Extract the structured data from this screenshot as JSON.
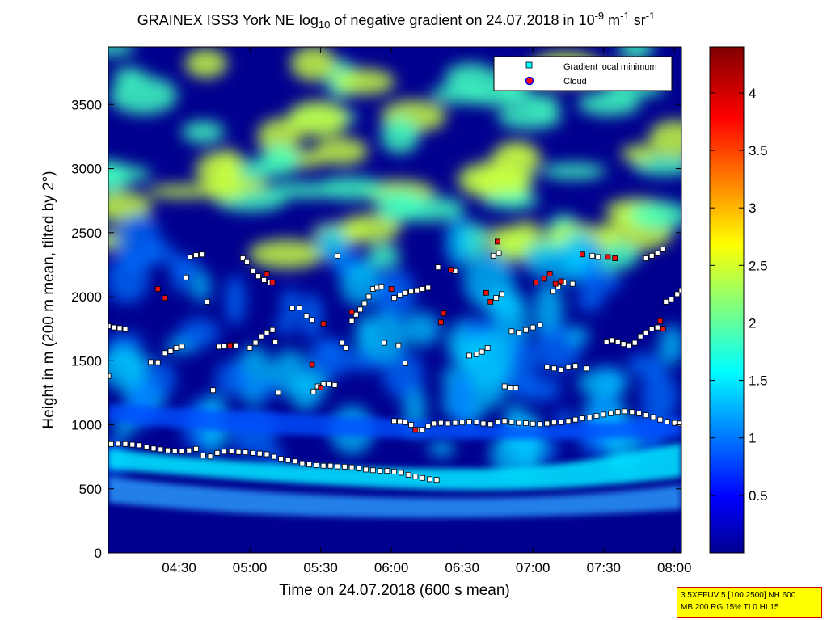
{
  "chart_data": {
    "type": "heatmap",
    "title": {
      "prefix": "GRAINEX ISS3 York NE log",
      "sub": "10",
      "mid": " of negative gradient on 24.07.2018 in 10",
      "sup1": "-9",
      "unit1": " m",
      "sup2": "-1",
      "unit2": " sr",
      "sup3": "-1"
    },
    "xlabel": "Time on 24.07.2018 (600 s mean)",
    "ylabel": "Height in m (200 m mean, tilted by 2°)",
    "x_ticks": [
      "04:30",
      "05:00",
      "05:30",
      "06:00",
      "06:30",
      "07:00",
      "07:30",
      "08:00"
    ],
    "x_tick_hours": [
      4.5,
      5.0,
      5.5,
      6.0,
      6.5,
      7.0,
      7.5,
      8.0
    ],
    "x_range_hours": [
      4.0,
      8.05
    ],
    "y_ticks": [
      0,
      500,
      1000,
      1500,
      2000,
      2500,
      3000,
      3500
    ],
    "ylim": [
      0,
      3950
    ],
    "colorbar": {
      "ticks": [
        "0.5",
        "1",
        "1.5",
        "2",
        "2.5",
        "3",
        "3.5",
        "4"
      ],
      "tick_values": [
        0.5,
        1.0,
        1.5,
        2.0,
        2.5,
        3.0,
        3.5,
        4.0
      ],
      "range": [
        0.0,
        4.4
      ]
    },
    "legend": {
      "position": "top-right",
      "entries": [
        {
          "label": "Gradient local minimum",
          "marker": "square",
          "color": "#00ffff"
        },
        {
          "label": "Cloud",
          "marker": "circle",
          "color": "#ff0000"
        }
      ]
    },
    "colors": {
      "low": "#00008f",
      "high": "#800000",
      "min_marker": "#ffffff",
      "cloud_marker": "#e81010"
    },
    "series": [
      {
        "name": "Gradient local minimum",
        "points": [
          [
            4.02,
            850
          ],
          [
            4.07,
            852
          ],
          [
            4.12,
            850
          ],
          [
            4.17,
            845
          ],
          [
            4.22,
            840
          ],
          [
            4.27,
            825
          ],
          [
            4.32,
            815
          ],
          [
            4.37,
            808
          ],
          [
            4.42,
            800
          ],
          [
            4.47,
            795
          ],
          [
            4.52,
            792
          ],
          [
            4.57,
            800
          ],
          [
            4.62,
            812
          ],
          [
            4.67,
            760
          ],
          [
            4.72,
            752
          ],
          [
            4.77,
            780
          ],
          [
            4.82,
            790
          ],
          [
            4.87,
            792
          ],
          [
            4.92,
            787
          ],
          [
            4.97,
            785
          ],
          [
            5.02,
            780
          ],
          [
            5.07,
            775
          ],
          [
            5.12,
            770
          ],
          [
            5.17,
            750
          ],
          [
            5.22,
            735
          ],
          [
            5.27,
            725
          ],
          [
            5.32,
            715
          ],
          [
            5.37,
            700
          ],
          [
            5.42,
            690
          ],
          [
            5.47,
            685
          ],
          [
            5.52,
            680
          ],
          [
            5.57,
            680
          ],
          [
            5.62,
            675
          ],
          [
            5.67,
            673
          ],
          [
            5.72,
            668
          ],
          [
            5.77,
            660
          ],
          [
            5.82,
            650
          ],
          [
            5.87,
            645
          ],
          [
            5.92,
            640
          ],
          [
            5.97,
            640
          ],
          [
            6.02,
            635
          ],
          [
            6.07,
            625
          ],
          [
            6.12,
            610
          ],
          [
            6.17,
            595
          ],
          [
            6.22,
            585
          ],
          [
            6.27,
            575
          ],
          [
            6.32,
            570
          ],
          [
            6.02,
            1030
          ],
          [
            6.06,
            1028
          ],
          [
            6.1,
            1020
          ],
          [
            6.14,
            1000
          ],
          [
            6.18,
            960
          ],
          [
            6.22,
            960
          ],
          [
            6.26,
            990
          ],
          [
            6.3,
            1010
          ],
          [
            6.35,
            1015
          ],
          [
            6.4,
            1010
          ],
          [
            6.45,
            1015
          ],
          [
            6.5,
            1018
          ],
          [
            6.55,
            1025
          ],
          [
            6.6,
            1020
          ],
          [
            6.65,
            1010
          ],
          [
            6.7,
            1005
          ],
          [
            6.75,
            1025
          ],
          [
            6.8,
            1030
          ],
          [
            6.85,
            1020
          ],
          [
            6.9,
            1015
          ],
          [
            6.95,
            1012
          ],
          [
            7.0,
            1008
          ],
          [
            7.05,
            1005
          ],
          [
            7.1,
            1010
          ],
          [
            7.15,
            1018
          ],
          [
            7.2,
            1020
          ],
          [
            7.25,
            1030
          ],
          [
            7.3,
            1040
          ],
          [
            7.35,
            1050
          ],
          [
            7.4,
            1058
          ],
          [
            7.45,
            1070
          ],
          [
            7.5,
            1080
          ],
          [
            7.55,
            1090
          ],
          [
            7.6,
            1100
          ],
          [
            7.65,
            1105
          ],
          [
            7.7,
            1100
          ],
          [
            7.75,
            1090
          ],
          [
            7.8,
            1075
          ],
          [
            7.85,
            1060
          ],
          [
            7.9,
            1040
          ],
          [
            7.95,
            1025
          ],
          [
            8.0,
            1015
          ],
          [
            8.04,
            1010
          ],
          [
            4.0,
            1770
          ],
          [
            4.04,
            1760
          ],
          [
            4.08,
            1755
          ],
          [
            4.12,
            1745
          ],
          [
            4.0,
            1380
          ],
          [
            4.3,
            1490
          ],
          [
            4.35,
            1488
          ],
          [
            4.4,
            1560
          ],
          [
            4.44,
            1575
          ],
          [
            4.48,
            1600
          ],
          [
            4.52,
            1610
          ],
          [
            4.55,
            2150
          ],
          [
            4.58,
            2310
          ],
          [
            4.62,
            2325
          ],
          [
            4.66,
            2330
          ],
          [
            4.7,
            1960
          ],
          [
            4.74,
            1270
          ],
          [
            4.78,
            1610
          ],
          [
            4.82,
            1615
          ],
          [
            4.86,
            1620
          ],
          [
            4.9,
            1620
          ],
          [
            4.95,
            2300
          ],
          [
            4.98,
            2270
          ],
          [
            5.0,
            1600
          ],
          [
            5.04,
            1640
          ],
          [
            5.08,
            1690
          ],
          [
            5.12,
            1720
          ],
          [
            5.16,
            1740
          ],
          [
            5.18,
            1650
          ],
          [
            5.2,
            1250
          ],
          [
            5.02,
            2200
          ],
          [
            5.06,
            2160
          ],
          [
            5.1,
            2130
          ],
          [
            5.14,
            2110
          ],
          [
            5.3,
            1910
          ],
          [
            5.35,
            1915
          ],
          [
            5.4,
            1850
          ],
          [
            5.44,
            1820
          ],
          [
            5.45,
            1260
          ],
          [
            5.48,
            1300
          ],
          [
            5.52,
            1320
          ],
          [
            5.56,
            1320
          ],
          [
            5.6,
            1310
          ],
          [
            5.62,
            2320
          ],
          [
            5.65,
            1640
          ],
          [
            5.68,
            1600
          ],
          [
            5.72,
            1810
          ],
          [
            5.75,
            1860
          ],
          [
            5.78,
            1900
          ],
          [
            5.81,
            1950
          ],
          [
            5.84,
            2000
          ],
          [
            5.87,
            2060
          ],
          [
            5.9,
            2070
          ],
          [
            5.93,
            2080
          ],
          [
            5.95,
            1640
          ],
          [
            6.05,
            1620
          ],
          [
            6.1,
            1480
          ],
          [
            6.02,
            1990
          ],
          [
            6.06,
            2010
          ],
          [
            6.1,
            2030
          ],
          [
            6.14,
            2040
          ],
          [
            6.18,
            2050
          ],
          [
            6.22,
            2060
          ],
          [
            6.26,
            2070
          ],
          [
            6.33,
            2230
          ],
          [
            6.45,
            2200
          ],
          [
            6.55,
            1540
          ],
          [
            6.6,
            1550
          ],
          [
            6.64,
            1570
          ],
          [
            6.68,
            1600
          ],
          [
            6.72,
            2320
          ],
          [
            6.76,
            2340
          ],
          [
            6.8,
            1300
          ],
          [
            6.84,
            1290
          ],
          [
            6.88,
            1290
          ],
          [
            6.74,
            1990
          ],
          [
            6.78,
            2020
          ],
          [
            6.85,
            1730
          ],
          [
            6.9,
            1720
          ],
          [
            6.95,
            1740
          ],
          [
            7.0,
            1760
          ],
          [
            7.05,
            1780
          ],
          [
            7.1,
            1450
          ],
          [
            7.15,
            1440
          ],
          [
            7.2,
            1430
          ],
          [
            7.25,
            1450
          ],
          [
            7.3,
            1460
          ],
          [
            7.38,
            1440
          ],
          [
            7.14,
            2040
          ],
          [
            7.18,
            2080
          ],
          [
            7.22,
            2110
          ],
          [
            7.28,
            2100
          ],
          [
            7.42,
            2320
          ],
          [
            7.46,
            2310
          ],
          [
            7.52,
            1650
          ],
          [
            7.56,
            1660
          ],
          [
            7.6,
            1650
          ],
          [
            7.64,
            1630
          ],
          [
            7.68,
            1620
          ],
          [
            7.72,
            1640
          ],
          [
            7.76,
            1690
          ],
          [
            7.8,
            1720
          ],
          [
            7.84,
            1750
          ],
          [
            7.88,
            1760
          ],
          [
            7.8,
            2300
          ],
          [
            7.84,
            2320
          ],
          [
            7.88,
            2340
          ],
          [
            7.92,
            2370
          ],
          [
            7.94,
            1960
          ],
          [
            7.98,
            1980
          ],
          [
            8.02,
            2020
          ],
          [
            8.05,
            2050
          ]
        ]
      },
      {
        "name": "Cloud",
        "points": [
          [
            4.35,
            2060
          ],
          [
            4.4,
            1990
          ],
          [
            4.86,
            1620
          ],
          [
            5.12,
            2180
          ],
          [
            5.16,
            2110
          ],
          [
            5.44,
            1470
          ],
          [
            5.52,
            1790
          ],
          [
            5.72,
            1880
          ],
          [
            6.0,
            2060
          ],
          [
            6.35,
            1800
          ],
          [
            6.37,
            1870
          ],
          [
            6.42,
            2210
          ],
          [
            6.67,
            2030
          ],
          [
            6.7,
            1960
          ],
          [
            6.75,
            2430
          ],
          [
            7.02,
            2110
          ],
          [
            7.08,
            2140
          ],
          [
            7.12,
            2180
          ],
          [
            7.16,
            2100
          ],
          [
            7.2,
            2120
          ],
          [
            7.35,
            2330
          ],
          [
            7.53,
            2310
          ],
          [
            7.58,
            2300
          ],
          [
            7.9,
            1810
          ],
          [
            7.92,
            1750
          ],
          [
            5.5,
            1290
          ],
          [
            6.17,
            960
          ]
        ]
      }
    ]
  },
  "info_box": {
    "line1": "3.5XEFUV 5 [100 2500] NH 600",
    "line2": "MB 200 RG 15% TI 0 HI 15"
  }
}
